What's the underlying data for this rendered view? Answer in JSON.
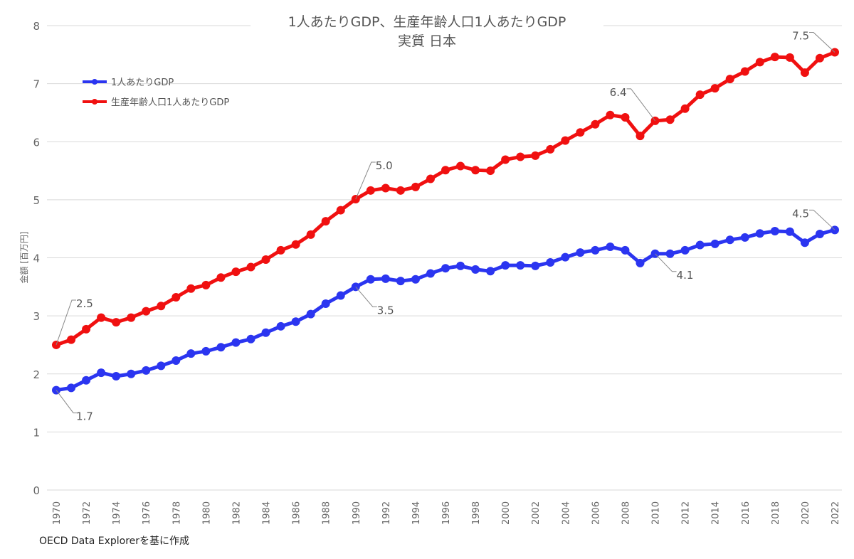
{
  "chart_data": {
    "type": "line",
    "title": "1人あたりGDP、生産年齢人口1人あたりGDP",
    "subtitle": "実質 日本",
    "xlabel": "",
    "ylabel": "金額 [百万円]",
    "ylim": [
      0,
      8
    ],
    "yticks": [
      "0",
      "1",
      "2",
      "3",
      "4",
      "5",
      "6",
      "7",
      "8"
    ],
    "grid": true,
    "legend": "top-left",
    "x": [
      1970,
      1971,
      1972,
      1973,
      1974,
      1975,
      1976,
      1977,
      1978,
      1979,
      1980,
      1981,
      1982,
      1983,
      1984,
      1985,
      1986,
      1987,
      1988,
      1989,
      1990,
      1991,
      1992,
      1993,
      1994,
      1995,
      1996,
      1997,
      1998,
      1999,
      2000,
      2001,
      2002,
      2003,
      2004,
      2005,
      2006,
      2007,
      2008,
      2009,
      2010,
      2011,
      2012,
      2013,
      2014,
      2015,
      2016,
      2017,
      2018,
      2019,
      2020,
      2021,
      2022
    ],
    "xticks": [
      "1970",
      "1972",
      "1974",
      "1976",
      "1978",
      "1980",
      "1982",
      "1984",
      "1986",
      "1988",
      "1990",
      "1992",
      "1994",
      "1996",
      "1998",
      "2000",
      "2002",
      "2004",
      "2006",
      "2008",
      "2010",
      "2012",
      "2014",
      "2016",
      "2018",
      "2020",
      "2022"
    ],
    "series": [
      {
        "name": "1人あたりGDP",
        "color": "#2b35f0",
        "values": [
          1.72,
          1.76,
          1.89,
          2.02,
          1.96,
          2.0,
          2.06,
          2.14,
          2.23,
          2.35,
          2.39,
          2.46,
          2.54,
          2.6,
          2.71,
          2.82,
          2.9,
          3.03,
          3.21,
          3.35,
          3.5,
          3.63,
          3.64,
          3.6,
          3.63,
          3.73,
          3.82,
          3.86,
          3.8,
          3.77,
          3.87,
          3.87,
          3.86,
          3.92,
          4.01,
          4.09,
          4.13,
          4.19,
          4.13,
          3.91,
          4.07,
          4.07,
          4.13,
          4.22,
          4.24,
          4.31,
          4.35,
          4.42,
          4.46,
          4.45,
          4.26,
          4.41,
          4.48
        ]
      },
      {
        "name": "生産年齢人口1人あたりGDP",
        "color": "#f01010",
        "values": [
          2.5,
          2.59,
          2.77,
          2.97,
          2.89,
          2.97,
          3.08,
          3.17,
          3.32,
          3.47,
          3.53,
          3.66,
          3.76,
          3.84,
          3.97,
          4.13,
          4.23,
          4.4,
          4.63,
          4.82,
          5.01,
          5.16,
          5.2,
          5.16,
          5.22,
          5.36,
          5.51,
          5.58,
          5.51,
          5.5,
          5.69,
          5.74,
          5.76,
          5.87,
          6.02,
          6.16,
          6.3,
          6.46,
          6.42,
          6.1,
          6.36,
          6.38,
          6.57,
          6.81,
          6.92,
          7.08,
          7.21,
          7.37,
          7.46,
          7.45,
          7.19,
          7.44,
          7.54
        ]
      }
    ],
    "annotations": [
      {
        "series": 0,
        "year": 1970,
        "label": "1.7"
      },
      {
        "series": 0,
        "year": 1990,
        "label": "3.5"
      },
      {
        "series": 0,
        "year": 2010,
        "label": "4.1"
      },
      {
        "series": 0,
        "year": 2022,
        "label": "4.5"
      },
      {
        "series": 1,
        "year": 1970,
        "label": "2.5"
      },
      {
        "series": 1,
        "year": 1990,
        "label": "5.0"
      },
      {
        "series": 1,
        "year": 2010,
        "label": "6.4"
      },
      {
        "series": 1,
        "year": 2022,
        "label": "7.5"
      }
    ]
  },
  "footer": "OECD Data Explorerを基に作成"
}
